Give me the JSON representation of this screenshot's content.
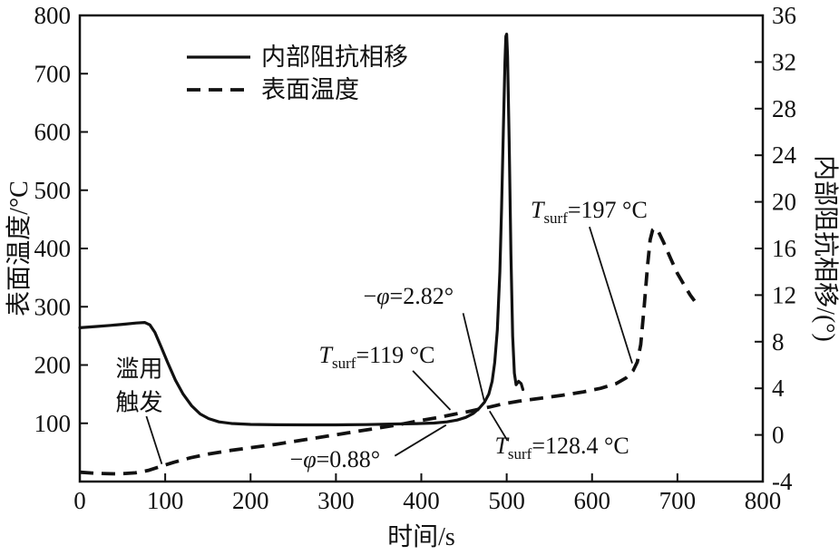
{
  "page": {
    "background": "#ffffff",
    "ink_color": "#111111"
  },
  "chart_data": {
    "type": "line",
    "title": "",
    "xlabel": "时间/s",
    "ylabel_left": "表面温度/°C",
    "ylabel_right": "内部阻抗相移/(°)",
    "xlim": [
      0,
      800
    ],
    "ylim_left": [
      0,
      800
    ],
    "ylim_right": [
      -4,
      36
    ],
    "x_ticks": [
      0,
      100,
      200,
      300,
      400,
      500,
      600,
      700,
      800
    ],
    "y_ticks_left": [
      100,
      200,
      300,
      400,
      500,
      600,
      700,
      800
    ],
    "y_ticks_right": [
      -4,
      0,
      4,
      8,
      12,
      16,
      20,
      24,
      28,
      32,
      36
    ],
    "grid": false,
    "legend_position": "upper-left-inside",
    "line_color": "#111111",
    "series": [
      {
        "id": "impedance-phase-line",
        "name": "内部阻抗相移",
        "axis": "right",
        "style": "solid",
        "points": [
          [
            0,
            9.2
          ],
          [
            18,
            9.3
          ],
          [
            36,
            9.4
          ],
          [
            52,
            9.5
          ],
          [
            66,
            9.6
          ],
          [
            76,
            9.65
          ],
          [
            82,
            9.45
          ],
          [
            88,
            8.8
          ],
          [
            95,
            7.6
          ],
          [
            103,
            6.2
          ],
          [
            112,
            4.7
          ],
          [
            121,
            3.5
          ],
          [
            131,
            2.5
          ],
          [
            141,
            1.8
          ],
          [
            151,
            1.4
          ],
          [
            163,
            1.12
          ],
          [
            178,
            0.98
          ],
          [
            200,
            0.9
          ],
          [
            230,
            0.87
          ],
          [
            265,
            0.86
          ],
          [
            300,
            0.86
          ],
          [
            335,
            0.89
          ],
          [
            365,
            0.93
          ],
          [
            395,
            0.97
          ],
          [
            415,
            1.02
          ],
          [
            430,
            1.12
          ],
          [
            442,
            1.28
          ],
          [
            452,
            1.5
          ],
          [
            461,
            1.85
          ],
          [
            468,
            2.3
          ],
          [
            474,
            2.82
          ],
          [
            479,
            3.5
          ],
          [
            483,
            4.6
          ],
          [
            486,
            6.2
          ],
          [
            489,
            9
          ],
          [
            492,
            14
          ],
          [
            494,
            19.5
          ],
          [
            496,
            26
          ],
          [
            498,
            32
          ],
          [
            499,
            34.2
          ],
          [
            500,
            34.4
          ],
          [
            501,
            32.5
          ],
          [
            503,
            25
          ],
          [
            505,
            15.5
          ],
          [
            507,
            8.5
          ],
          [
            509,
            5.3
          ],
          [
            511,
            4.3
          ],
          [
            514,
            4.6
          ],
          [
            517,
            4.4
          ],
          [
            519,
            3.9
          ]
        ]
      },
      {
        "id": "surface-temp-line",
        "name": "表面温度",
        "axis": "left",
        "style": "dashed",
        "points": [
          [
            0,
            16
          ],
          [
            20,
            14
          ],
          [
            45,
            13
          ],
          [
            65,
            15
          ],
          [
            80,
            19
          ],
          [
            95,
            26
          ],
          [
            110,
            33
          ],
          [
            130,
            41
          ],
          [
            150,
            47
          ],
          [
            175,
            53
          ],
          [
            200,
            58
          ],
          [
            230,
            64
          ],
          [
            260,
            71
          ],
          [
            290,
            78
          ],
          [
            320,
            85
          ],
          [
            350,
            92
          ],
          [
            375,
            98
          ],
          [
            400,
            105
          ],
          [
            420,
            110
          ],
          [
            440,
            116
          ],
          [
            455,
            120
          ],
          [
            470,
            125
          ],
          [
            480,
            128
          ],
          [
            495,
            133
          ],
          [
            515,
            138
          ],
          [
            540,
            143
          ],
          [
            565,
            148
          ],
          [
            590,
            154
          ],
          [
            610,
            160
          ],
          [
            628,
            168
          ],
          [
            640,
            178
          ],
          [
            648,
            190
          ],
          [
            653,
            205
          ],
          [
            657,
            235
          ],
          [
            661,
            300
          ],
          [
            665,
            370
          ],
          [
            668,
            415
          ],
          [
            671,
            432
          ],
          [
            674,
            435
          ],
          [
            678,
            428
          ],
          [
            684,
            410
          ],
          [
            692,
            383
          ],
          [
            700,
            357
          ],
          [
            708,
            337
          ],
          [
            715,
            320
          ],
          [
            720,
            310
          ]
        ]
      }
    ],
    "annotations": [
      {
        "id": "abuse-trigger",
        "kind": "two-line",
        "lines": [
          "滥用",
          "触发"
        ],
        "x": 42,
        "y": 180,
        "leader": [
          [
            78,
            112
          ],
          [
            96,
            30
          ]
        ]
      },
      {
        "id": "phi-0-88",
        "kind": "phi",
        "text": "−φ=0.88°",
        "x": 246,
        "y": 25,
        "leader": [
          [
            369,
            44
          ],
          [
            429,
            97
          ]
        ]
      },
      {
        "id": "tsurf-119",
        "kind": "tsurf",
        "sub": "surf",
        "value": "=119 °C",
        "x": 280,
        "y": 204,
        "leader": [
          [
            390,
            190
          ],
          [
            434,
            123
          ]
        ]
      },
      {
        "id": "phi-2-82",
        "kind": "phi",
        "text": "−φ=2.82°",
        "x": 332,
        "y": 305,
        "leader": [
          [
            449,
            289
          ],
          [
            474,
            136
          ]
        ]
      },
      {
        "id": "tsurf-128-4",
        "kind": "tsurf",
        "sub": "surf",
        "value": "=128.4 °C",
        "x": 486,
        "y": 48,
        "leader": [
          [
            501,
            70
          ],
          [
            480,
            121
          ]
        ]
      },
      {
        "id": "tsurf-197",
        "kind": "tsurf",
        "sub": "surf",
        "value": "=197 °C",
        "x": 528,
        "y": 453,
        "leader": [
          [
            597,
            437
          ],
          [
            647,
            203
          ]
        ]
      }
    ]
  }
}
